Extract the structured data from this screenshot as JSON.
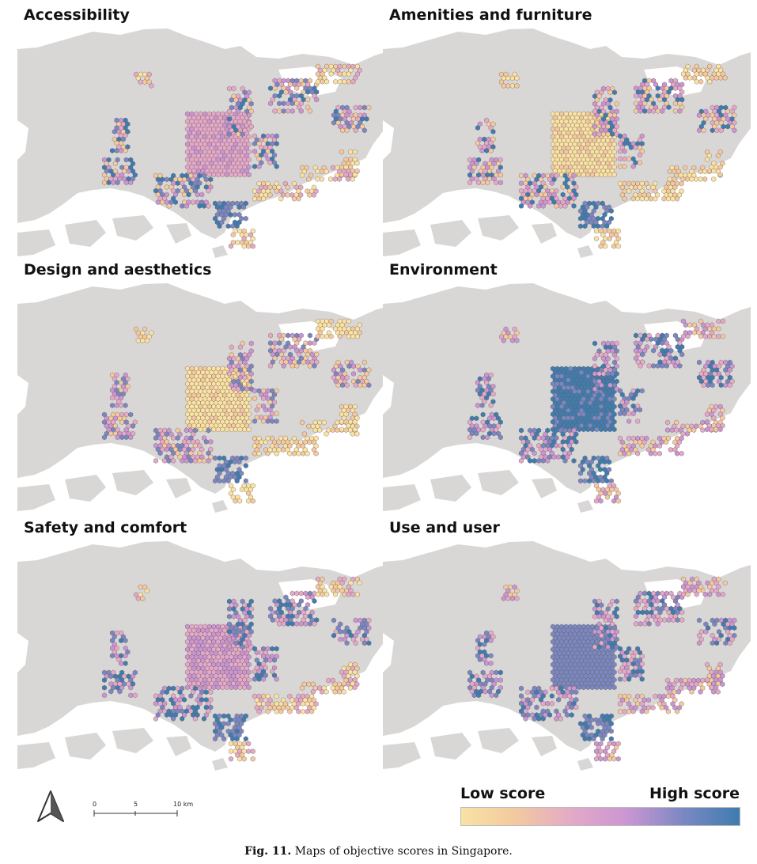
{
  "maps": [
    {
      "title": "Accessibility",
      "scheme": "accessibility"
    },
    {
      "title": "Amenities and furniture",
      "scheme": "amenities"
    },
    {
      "title": "Design and aesthetics",
      "scheme": "design"
    },
    {
      "title": "Environment",
      "scheme": "environment"
    },
    {
      "title": "Safety and comfort",
      "scheme": "safety"
    },
    {
      "title": "Use and user",
      "scheme": "use"
    }
  ],
  "legend": {
    "low_label": "Low score",
    "high_label": "High score",
    "colors": [
      "#f9e2a4",
      "#f2c9a0",
      "#e3a9c8",
      "#c996d2",
      "#7a88c2",
      "#3f7cb0"
    ]
  },
  "scale_bar": {
    "ticks": [
      "0",
      "5",
      "10 km"
    ]
  },
  "north_arrow": "north-arrow-icon",
  "caption": {
    "label": "Fig. 11.",
    "text": "Maps of objective scores in Singapore."
  },
  "colors": {
    "land": "#d9d7d6",
    "water": "#ffffff",
    "hex_stroke": "#6a5a55"
  }
}
